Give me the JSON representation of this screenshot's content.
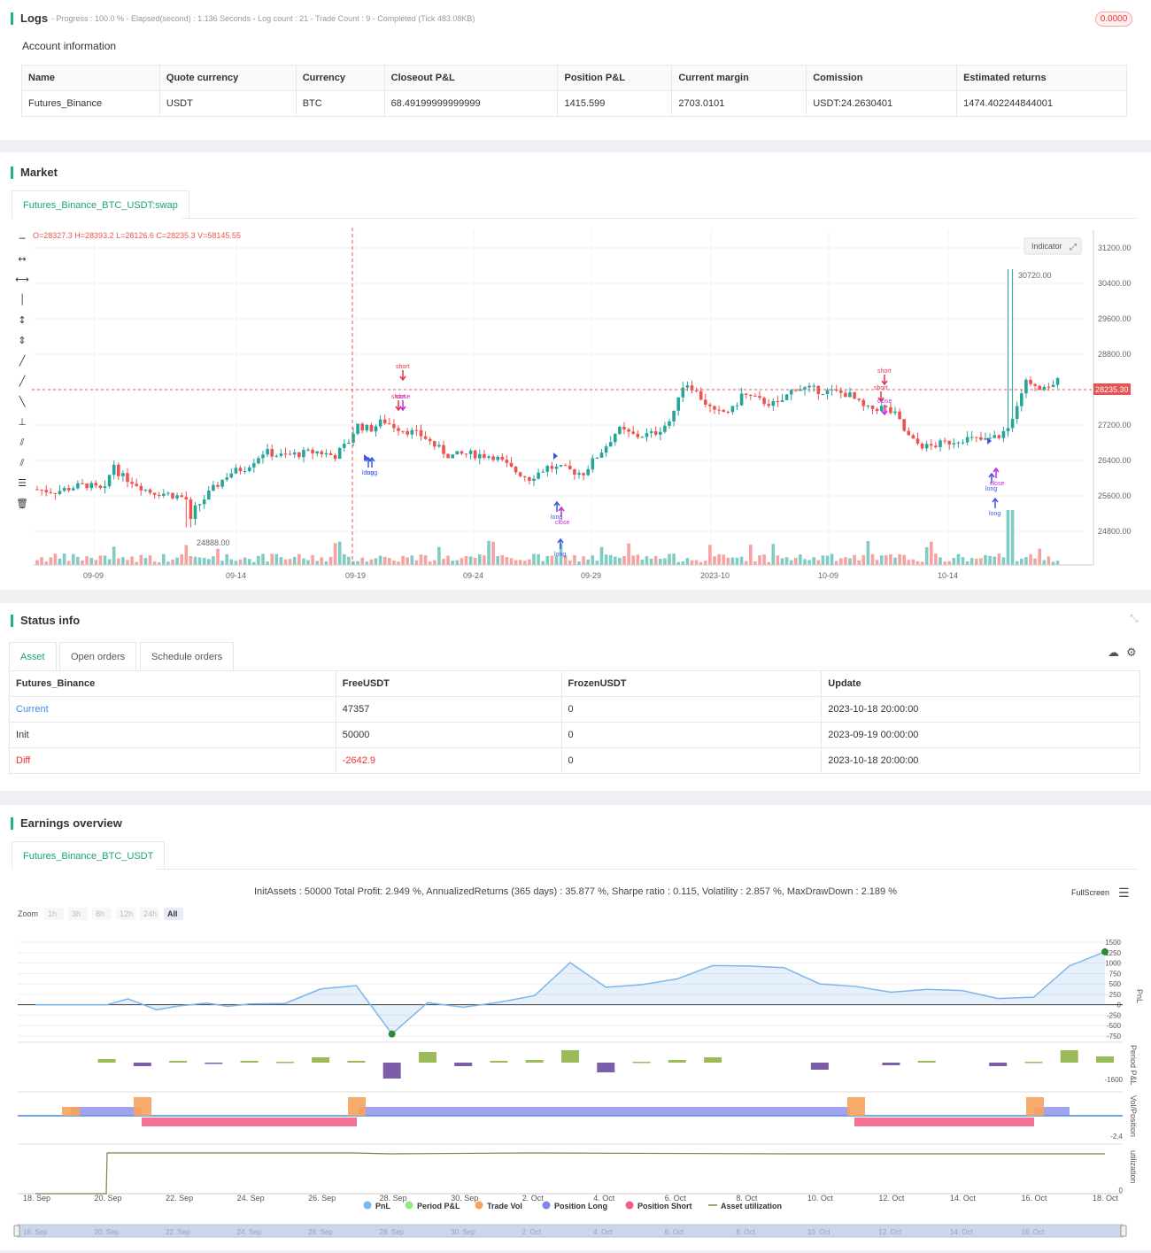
{
  "logs": {
    "title": "Logs",
    "progress": "- Progress : 100.0 % - Elapsed(second) : 1.136  Seconds - Log count : 21 - Trade Count : 9 - Completed (Tick 483.08KB)",
    "badge": "0.0000",
    "account_title": "Account information",
    "columns": [
      "Name",
      "Quote currency",
      "Currency",
      "Closeout P&L",
      "Position P&L",
      "Current margin",
      "Comission",
      "Estimated returns"
    ],
    "row": [
      "Futures_Binance",
      "USDT",
      "BTC",
      "68.49199999999999",
      "1415.599",
      "2703.0101",
      "USDT:24.2630401",
      "1474.402244844001"
    ]
  },
  "market": {
    "title": "Market",
    "tab": "Futures_Binance_BTC_USDT:swap",
    "ohlc": "O=28327.3 H=28393.2 L=28126.6 C=28235.3 V=58145.55",
    "indicator_label": "Indicator",
    "price_ticks": [
      "31200.00",
      "30400.00",
      "29600.00",
      "28800.00",
      "28000.00",
      "27200.00",
      "26400.00",
      "25600.00",
      "24800.00"
    ],
    "date_ticks": [
      "09-09",
      "09-14",
      "09-19",
      "09-24",
      "09-29",
      "2023-10",
      "10-09",
      "10-14"
    ],
    "current_price": "28235.30",
    "high_label": "30720.00",
    "low_label": "24888.00",
    "markers": {
      "short": "short",
      "long": "long",
      "close": "close",
      "one": "1"
    }
  },
  "status": {
    "title": "Status info",
    "tabs": [
      "Asset",
      "Open orders",
      "Schedule orders"
    ],
    "columns": [
      "Futures_Binance",
      "FreeUSDT",
      "FrozenUSDT",
      "Update"
    ],
    "rows": [
      {
        "name": "Current",
        "free": "47357",
        "frozen": "0",
        "update": "2023-10-18 20:00:00"
      },
      {
        "name": "Init",
        "free": "50000",
        "frozen": "0",
        "update": "2023-09-19 00:00:00"
      },
      {
        "name": "Diff",
        "free": "-2642.9",
        "frozen": "0",
        "update": "2023-10-18 20:00:00"
      }
    ]
  },
  "earnings": {
    "title": "Earnings overview",
    "tab": "Futures_Binance_BTC_USDT",
    "summary": "InitAssets : 50000 Total Profit: 2.949 %, AnnualizedReturns (365 days) : 35.877 %, Sharpe ratio : 0.115, Volatility : 2.857 %, MaxDrawDown : 2.189 %",
    "fullscreen": "FullScreen",
    "zoom_label": "Zoom",
    "zoom_options": [
      "1h",
      "3h",
      "8h",
      "12h",
      "24h",
      "All"
    ],
    "pnl_ticks": [
      "1500",
      "1250",
      "1000",
      "750",
      "500",
      "250",
      "0",
      "-250",
      "-500",
      "-750"
    ],
    "axis_labels": {
      "pnl": "PnL",
      "period": "Period P&L",
      "volpos": "Vol/Position",
      "util": "utilization"
    },
    "period_tick": "-1600",
    "volpos_tick": "-2.4",
    "util_tick": "0",
    "x_ticks": [
      "18. Sep",
      "20. Sep",
      "22. Sep",
      "24. Sep",
      "26. Sep",
      "28. Sep",
      "30. Sep",
      "2. Oct",
      "4. Oct",
      "6. Oct",
      "8. Oct",
      "10. Oct",
      "12. Oct",
      "14. Oct",
      "16. Oct",
      "18. Oct"
    ],
    "legend": [
      "PnL",
      "Period P&L",
      "Trade Vol",
      "Position Long",
      "Position Short",
      "Asset utilization"
    ],
    "colors": {
      "pnl": "#7cb5ec",
      "period": "#90ed7d",
      "trade": "#f7a35c",
      "long": "#8085e9",
      "short": "#f15c80",
      "util": "#8d7b4a"
    }
  }
}
